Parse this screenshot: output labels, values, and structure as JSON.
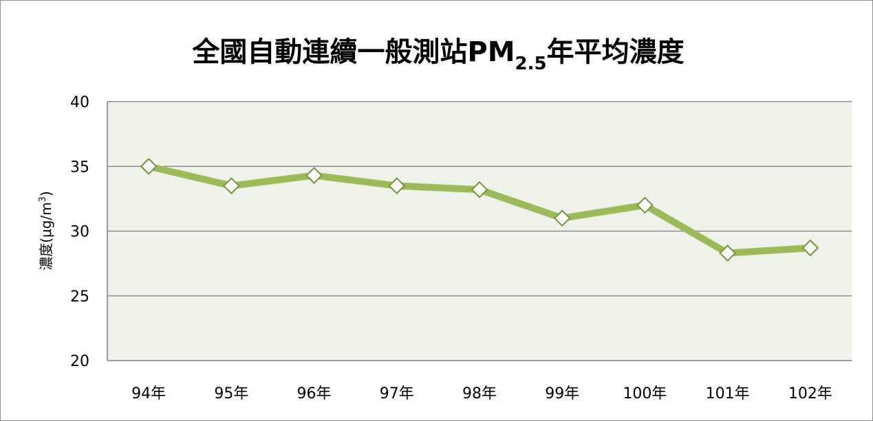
{
  "chart_data": {
    "type": "line",
    "title": {
      "main": "全國自動連續一般測站PM",
      "subscript": "2.5",
      "suffix": "年平均濃度"
    },
    "xlabel": "",
    "ylabel": {
      "main": "濃度(μg/m",
      "superscript": "3",
      "suffix": ")"
    },
    "categories": [
      "94年",
      "95年",
      "96年",
      "97年",
      "98年",
      "99年",
      "100年",
      "101年",
      "102年"
    ],
    "series": [
      {
        "values": [
          35.0,
          33.5,
          34.3,
          33.5,
          33.2,
          31.0,
          32.0,
          28.3,
          28.7
        ],
        "color": "#9bbb59",
        "marker": "diamond",
        "marker_fill": "#ffffff"
      }
    ],
    "ylim": [
      20,
      40
    ],
    "yticks": [
      "20",
      "25",
      "30",
      "35",
      "40"
    ],
    "grid": true,
    "legend": "none",
    "plot_background": "#eef2e8"
  }
}
